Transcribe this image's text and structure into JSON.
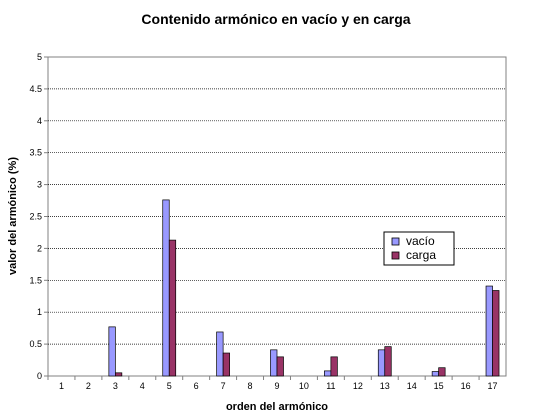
{
  "chart_data": {
    "type": "bar",
    "title": "Contenido armónico en vacío y en carga",
    "xlabel": "orden del armónico",
    "ylabel": "valor del armónico (%)",
    "categories": [
      "1",
      "2",
      "3",
      "4",
      "5",
      "6",
      "7",
      "8",
      "9",
      "10",
      "11",
      "12",
      "13",
      "14",
      "15",
      "16",
      "17"
    ],
    "series": [
      {
        "name": "vacío",
        "color": "#9999ff",
        "values": [
          0,
          0,
          0.77,
          0,
          2.76,
          0,
          0.69,
          0,
          0.41,
          0,
          0.08,
          0,
          0.41,
          0,
          0.07,
          0,
          1.41
        ]
      },
      {
        "name": "carga",
        "color": "#993366",
        "values": [
          0,
          0,
          0.05,
          0,
          2.13,
          0,
          0.36,
          0,
          0.3,
          0,
          0.3,
          0,
          0.46,
          0,
          0.13,
          0,
          1.34
        ]
      }
    ],
    "ylim": [
      0,
      5
    ],
    "yticks": [
      "0",
      "0.5",
      "1",
      "1.5",
      "2",
      "2.5",
      "3",
      "3.5",
      "4",
      "4.5",
      "5"
    ],
    "grid": true,
    "legend_position": "right"
  }
}
